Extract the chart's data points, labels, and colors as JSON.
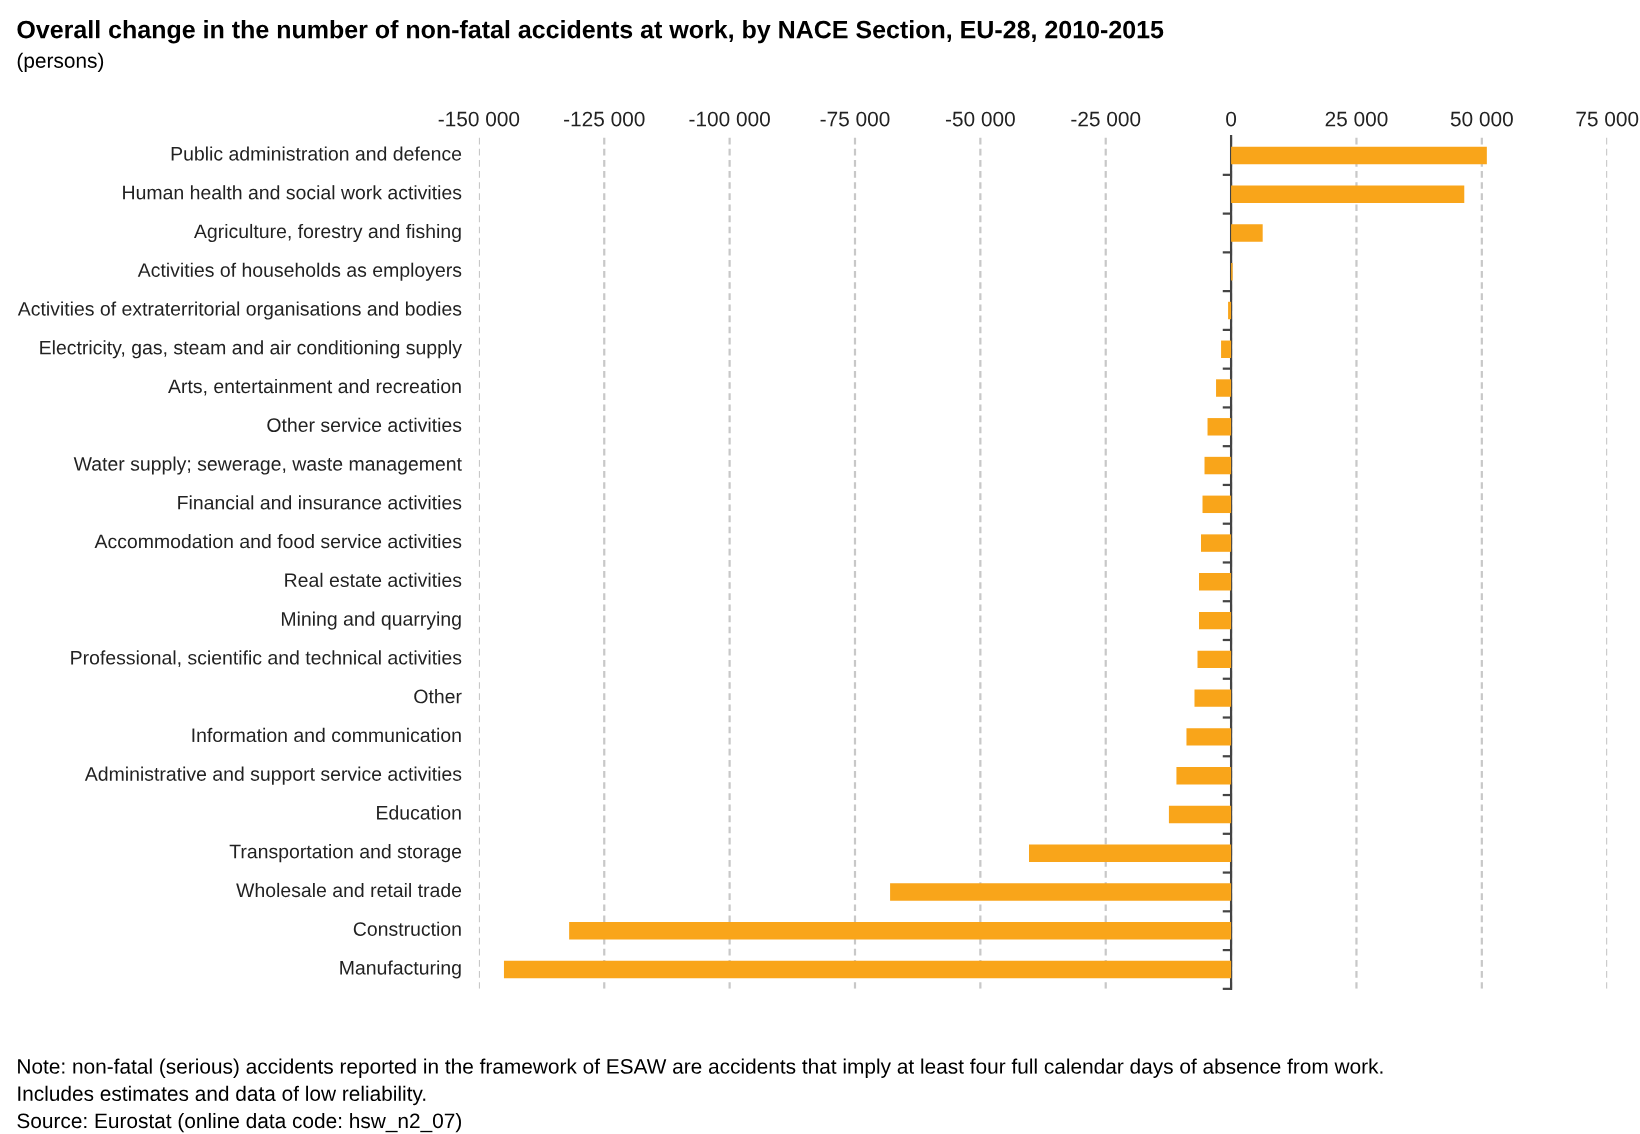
{
  "chart_data": {
    "type": "bar",
    "orientation": "horizontal",
    "title": "Overall change in the number of non-fatal accidents at work, by NACE Section, EU-28, 2010-2015",
    "subtitle": "(persons)",
    "categories": [
      "Public administration and defence",
      "Human health and social work activities",
      "Agriculture, forestry and fishing",
      "Activities of households as employers",
      "Activities of extraterritorial organisations and bodies",
      "Electricity, gas, steam and air conditioning supply",
      "Arts, entertainment and recreation",
      "Other service activities",
      "Water supply; sewerage, waste management",
      "Financial and insurance activities",
      "Accommodation and food service activities",
      "Real estate activities",
      "Mining and quarrying",
      "Professional, scientific and technical activities",
      "Other",
      "Information and communication",
      "Administrative and support service activities",
      "Education",
      "Transportation and storage",
      "Wholesale and retail trade",
      "Construction",
      "Manufacturing"
    ],
    "values": [
      51000,
      46500,
      6300,
      300,
      -600,
      -2000,
      -3000,
      -4700,
      -5300,
      -5700,
      -6000,
      -6400,
      -6400,
      -6700,
      -7300,
      -8900,
      -10900,
      -12400,
      -40300,
      -68000,
      -132000,
      -145000
    ],
    "color": "#f9a51a",
    "xlim": [
      -150000,
      75000
    ],
    "xticks": [
      {
        "value": -150000,
        "label": "-150 000"
      },
      {
        "value": -125000,
        "label": "-125 000"
      },
      {
        "value": -100000,
        "label": "-100 000"
      },
      {
        "value": -75000,
        "label": "-75 000"
      },
      {
        "value": -50000,
        "label": "-50 000"
      },
      {
        "value": -25000,
        "label": "-25 000"
      },
      0,
      {
        "value": 25000,
        "label": "25 000"
      },
      {
        "value": 50000,
        "label": "50 000"
      },
      {
        "value": 75000,
        "label": "75 000"
      }
    ],
    "grid": "x",
    "annotations": [
      "Note: non-fatal (serious) accidents reported in the framework of ESAW are accidents that imply at least four full calendar days of absence from work.",
      "Includes estimates and data of low reliability.",
      "Source: Eurostat (online data code: hsw_n2_07)"
    ]
  }
}
